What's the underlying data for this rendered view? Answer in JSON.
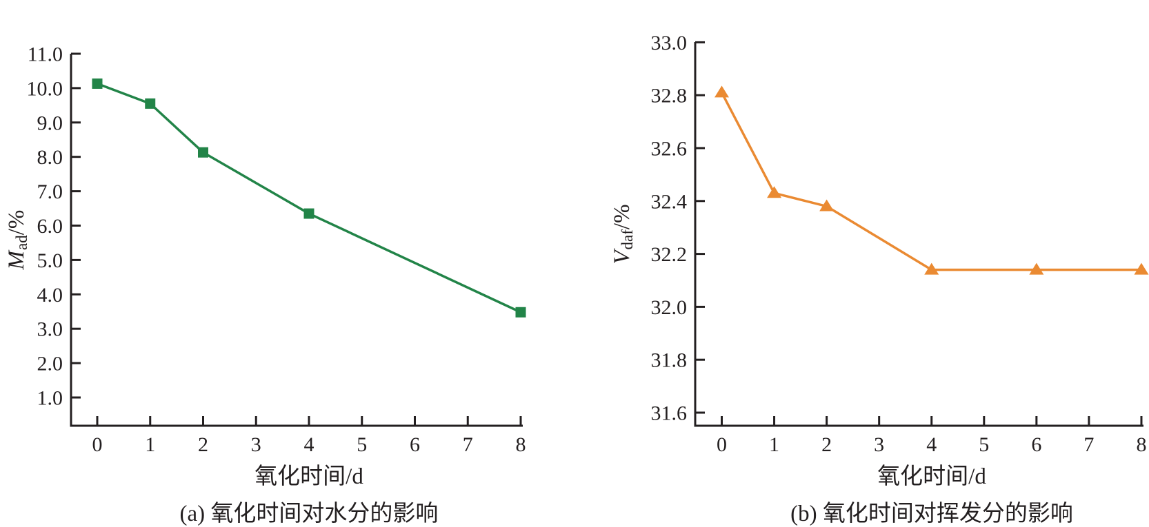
{
  "figure": {
    "background": "#ffffff",
    "axis_color": "#231f20",
    "text_color": "#231f20"
  },
  "chart_data": [
    {
      "type": "line",
      "panel": "a",
      "title": "",
      "caption": "(a) 氧化时间对水分的影响",
      "xlabel": "氧化时间/d",
      "ylabel": "Mad/%",
      "ylabel_parts": {
        "symbol": "M",
        "subscript": "ad",
        "unit": "/%"
      },
      "legend_position": "none",
      "grid": false,
      "xlim": [
        -0.5,
        8
      ],
      "ylim": [
        0.2,
        11.0
      ],
      "x_tick_labels": [
        "0",
        "1",
        "2",
        "3",
        "4",
        "5",
        "6",
        "7",
        "8"
      ],
      "y_tick_labels": [
        "11.0",
        "10.0",
        "9.0",
        "8.0",
        "7.0",
        "6.0",
        "5.0",
        "4.0",
        "3.0",
        "2.0",
        "1.0"
      ],
      "series": [
        {
          "name": "Mad",
          "marker": "square",
          "color": "#228448",
          "x": [
            0,
            1,
            2,
            4,
            8
          ],
          "values": [
            10.13,
            9.55,
            8.13,
            6.35,
            3.48
          ]
        }
      ]
    },
    {
      "type": "line",
      "panel": "b",
      "title": "",
      "caption": "(b) 氧化时间对挥发分的影响",
      "xlabel": "氧化时间/d",
      "ylabel": "Vdaf/%",
      "ylabel_parts": {
        "symbol": "V",
        "subscript": "daf",
        "unit": "/%"
      },
      "legend_position": "none",
      "grid": false,
      "xlim": [
        -0.5,
        8
      ],
      "ylim": [
        31.55,
        33.0
      ],
      "x_tick_labels": [
        "0",
        "1",
        "2",
        "3",
        "4",
        "5",
        "6",
        "7",
        "8"
      ],
      "y_tick_labels": [
        "33.0",
        "32.8",
        "32.6",
        "32.4",
        "32.2",
        "32.0",
        "31.8",
        "31.6"
      ],
      "series": [
        {
          "name": "Vdaf",
          "marker": "triangle",
          "color": "#ea8a32",
          "x": [
            0,
            1,
            2,
            4,
            6,
            8
          ],
          "values": [
            32.81,
            32.43,
            32.38,
            32.14,
            32.14,
            32.14
          ]
        }
      ]
    }
  ]
}
